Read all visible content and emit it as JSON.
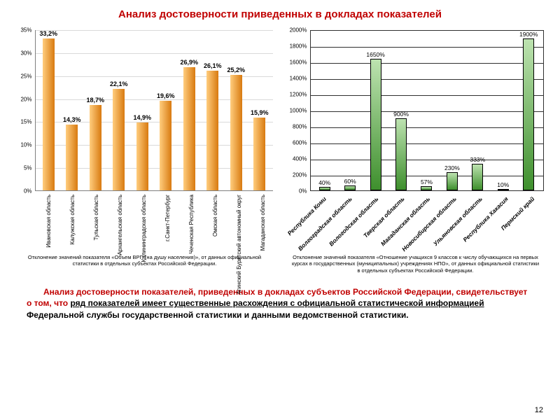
{
  "title": "Анализ достоверности приведенных в докладах показателей",
  "chart1": {
    "type": "bar",
    "ylim": [
      0,
      35
    ],
    "ytick_step": 5,
    "grid_color": "#d9d9d9",
    "bar_gradient": [
      "#ffcd7e",
      "#d87a10"
    ],
    "label_fontsize": 9,
    "categories": [
      "Ивановская область",
      "Калужская область",
      "Тульская область",
      "Архангельская область",
      "Калининградская область",
      "г.Санкт-Петербург",
      "Чеченская Республика",
      "Омская область",
      "Агинский Бурятский автономный округ",
      "Магаданская область"
    ],
    "values": [
      33.2,
      14.3,
      18.7,
      22.1,
      14.9,
      19.6,
      26.9,
      26.1,
      25.2,
      15.9
    ],
    "value_labels": [
      "33,2%",
      "14,3%",
      "18,7%",
      "22,1%",
      "14,9%",
      "19,6%",
      "26,9%",
      "26,1%",
      "25,2%",
      "15,9%"
    ],
    "caption": "Отклонение значений показателя «Объем ВРП (на душу населения)», от данных официальной статистики в отдельных субъектах Российской Федерации."
  },
  "chart2": {
    "type": "bar",
    "ylim": [
      0,
      2000
    ],
    "ytick_step": 200,
    "grid_color": "#2f2f2f",
    "bar_gradient": [
      "#BDE3B0",
      "#3E8F2D"
    ],
    "label_fontsize": 8.5,
    "categories": [
      "Республика Коми",
      "Волгоградская область",
      "Вологодская область",
      "Тверская область",
      "Магаданская область",
      "Новосибирская область",
      "Ульяновская область",
      "Республика Хакасия",
      "Пермский край"
    ],
    "values": [
      40,
      60,
      1650,
      900,
      57,
      230,
      333,
      10,
      1900
    ],
    "value_labels": [
      "40%",
      "60%",
      "1650%",
      "900%",
      "57%",
      "230%",
      "333%",
      "10%",
      "1900%"
    ],
    "caption": "Отклонение значений показателя «Отношение учащихся 9 классов к числу обучающихся на первых курсах в государственных (муниципальных) учреждениях НПО», от данных официальной статистики в отдельных субъектах Российской Федерации."
  },
  "bottom_text": {
    "part1": "Анализ достоверности показателей, приведенных в докладах субъектов Российской Федерации, свидетельствует о том, что ",
    "part2_underlined": "ряд показателей имеет существенные расхождения с официальной статистической информацией",
    "part3": " Федеральной службы государственной статистики и данными ведомственной статистики."
  },
  "page_number": "12"
}
